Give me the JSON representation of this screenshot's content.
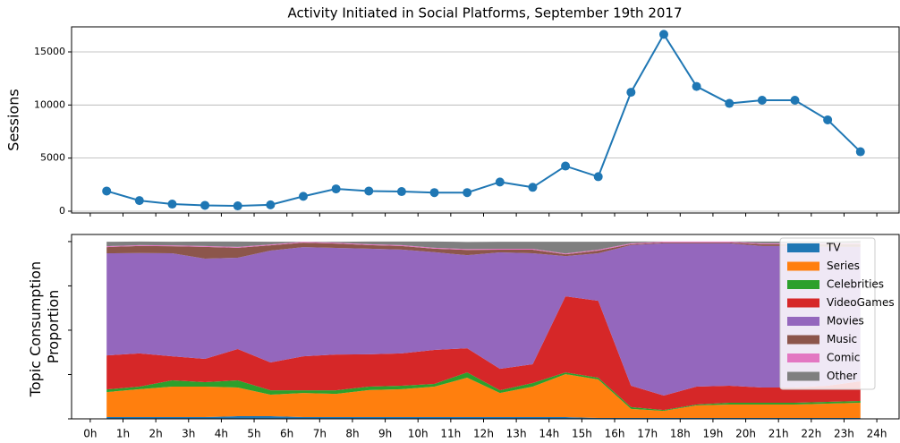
{
  "chart_data": [
    {
      "type": "line",
      "title": "Activity Initiated in Social Platforms, September 19th 2017",
      "ylabel": "Sessions",
      "x": [
        0.5,
        1.5,
        2.5,
        3.5,
        4.5,
        5.5,
        6.5,
        7.5,
        8.5,
        9.5,
        10.5,
        11.5,
        12.5,
        13.5,
        14.5,
        15.5,
        16.5,
        17.5,
        18.5,
        19.5,
        20.5,
        21.5,
        22.5,
        23.5
      ],
      "values": [
        1900,
        1000,
        670,
        550,
        500,
        600,
        1400,
        2100,
        1900,
        1850,
        1750,
        1750,
        2750,
        2250,
        4250,
        3250,
        11200,
        16650,
        11750,
        10150,
        10450,
        10450,
        8600,
        5600
      ],
      "color": "#1f77b4",
      "xlim": [
        -0.57,
        24.68
      ],
      "ylim": [
        -170,
        17360
      ],
      "yticks": [
        0,
        5000,
        10000,
        15000
      ],
      "grid": true
    },
    {
      "type": "stacked_area",
      "ylabel": [
        "Topic Consumption",
        "Proportion"
      ],
      "x": [
        0.5,
        1.5,
        2.5,
        3.5,
        4.5,
        5.5,
        6.5,
        7.5,
        8.5,
        9.5,
        10.5,
        11.5,
        12.5,
        13.5,
        14.5,
        15.5,
        16.5,
        17.5,
        18.5,
        19.5,
        20.5,
        21.5,
        22.5,
        23.5
      ],
      "series": [
        {
          "name": "TV",
          "color": "#1f77b4",
          "values": [
            0.01,
            0.01,
            0.01,
            0.01,
            0.015,
            0.015,
            0.01,
            0.01,
            0.01,
            0.01,
            0.01,
            0.01,
            0.01,
            0.01,
            0.01,
            0.005,
            0.005,
            0.005,
            0.005,
            0.005,
            0.005,
            0.005,
            0.005,
            0.005
          ]
        },
        {
          "name": "Series",
          "color": "#ff7f0e",
          "values": [
            0.141,
            0.157,
            0.172,
            0.172,
            0.162,
            0.121,
            0.136,
            0.131,
            0.152,
            0.157,
            0.172,
            0.222,
            0.136,
            0.172,
            0.242,
            0.217,
            0.051,
            0.04,
            0.071,
            0.076,
            0.076,
            0.076,
            0.081,
            0.086
          ]
        },
        {
          "name": "Celebrities",
          "color": "#2ca02c",
          "values": [
            0.015,
            0.015,
            0.035,
            0.025,
            0.04,
            0.025,
            0.015,
            0.02,
            0.02,
            0.02,
            0.015,
            0.03,
            0.015,
            0.02,
            0.01,
            0.01,
            0.01,
            0.005,
            0.005,
            0.01,
            0.01,
            0.01,
            0.01,
            0.01
          ]
        },
        {
          "name": "VideoGames",
          "color": "#d62728",
          "values": [
            0.192,
            0.187,
            0.136,
            0.131,
            0.177,
            0.157,
            0.192,
            0.202,
            0.182,
            0.182,
            0.192,
            0.136,
            0.121,
            0.106,
            0.429,
            0.434,
            0.121,
            0.081,
            0.101,
            0.096,
            0.086,
            0.086,
            0.091,
            0.111
          ]
        },
        {
          "name": "Movies",
          "color": "#9467bd",
          "values": [
            0.576,
            0.566,
            0.581,
            0.566,
            0.515,
            0.631,
            0.616,
            0.601,
            0.596,
            0.586,
            0.551,
            0.525,
            0.657,
            0.626,
            0.227,
            0.268,
            0.793,
            0.859,
            0.808,
            0.803,
            0.798,
            0.798,
            0.783,
            0.758
          ]
        },
        {
          "name": "Music",
          "color": "#8c564b",
          "values": [
            0.035,
            0.04,
            0.04,
            0.066,
            0.056,
            0.03,
            0.025,
            0.025,
            0.02,
            0.02,
            0.02,
            0.03,
            0.015,
            0.02,
            0.01,
            0.015,
            0.005,
            0.005,
            0.005,
            0.005,
            0.01,
            0.01,
            0.015,
            0.015
          ]
        },
        {
          "name": "Comic",
          "color": "#e377c2",
          "values": [
            0.005,
            0.005,
            0.005,
            0.005,
            0.005,
            0.005,
            0.005,
            0.005,
            0.005,
            0.005,
            0.005,
            0.005,
            0.005,
            0.005,
            0.005,
            0.005,
            0.005,
            0.005,
            0.005,
            0.005,
            0.005,
            0.005,
            0.005,
            0.005
          ]
        },
        {
          "name": "Other",
          "color": "#7f7f7f",
          "values": [
            0.025,
            0.02,
            0.02,
            0.025,
            0.03,
            0.015,
            0.0,
            0.005,
            0.015,
            0.02,
            0.035,
            0.04,
            0.04,
            0.04,
            0.066,
            0.045,
            0.01,
            0.0,
            0.0,
            0.0,
            0.01,
            0.01,
            0.01,
            0.015
          ]
        }
      ],
      "xlim": [
        -0.57,
        24.68
      ],
      "ylim": [
        0,
        1.04
      ],
      "yticks": [
        0,
        0.25,
        0.5,
        0.75,
        1
      ],
      "xticks": [
        {
          "value": 0,
          "label": "0h"
        },
        {
          "value": 1,
          "label": "1h"
        },
        {
          "value": 2,
          "label": "2h"
        },
        {
          "value": 3,
          "label": "3h"
        },
        {
          "value": 4,
          "label": "4h"
        },
        {
          "value": 5,
          "label": "5h"
        },
        {
          "value": 6,
          "label": "6h"
        },
        {
          "value": 7,
          "label": "7h"
        },
        {
          "value": 8,
          "label": "8h"
        },
        {
          "value": 9,
          "label": "9h"
        },
        {
          "value": 10,
          "label": "10h"
        },
        {
          "value": 11,
          "label": "11h"
        },
        {
          "value": 12,
          "label": "12h"
        },
        {
          "value": 13,
          "label": "13h"
        },
        {
          "value": 14,
          "label": "14h"
        },
        {
          "value": 15,
          "label": "15h"
        },
        {
          "value": 16,
          "label": "16h"
        },
        {
          "value": 17,
          "label": "17h"
        },
        {
          "value": 18,
          "label": "18h"
        },
        {
          "value": 19,
          "label": "19h"
        },
        {
          "value": 20,
          "label": "20h"
        },
        {
          "value": 21,
          "label": "21h"
        },
        {
          "value": 22,
          "label": "22h"
        },
        {
          "value": 23,
          "label": "23h"
        },
        {
          "value": 24,
          "label": "24h"
        }
      ],
      "legend": "upper right"
    }
  ]
}
